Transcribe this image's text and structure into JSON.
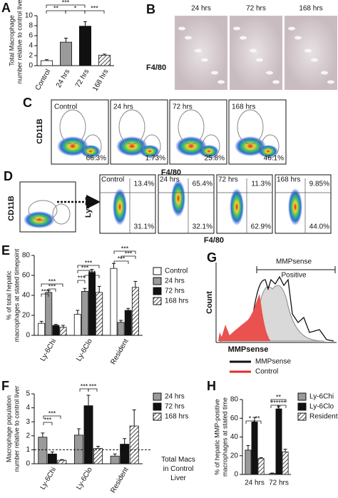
{
  "chart_data": [
    {
      "type": "bar",
      "panel": "A",
      "ylabel": [
        "Total Macrophage",
        "number relative to control liver"
      ],
      "categories": [
        "Control",
        "24 hrs",
        "72 hrs",
        "168 hrs"
      ],
      "values": [
        1,
        4.7,
        7.9,
        2.1
      ],
      "errors": [
        0.2,
        0.8,
        0.9,
        0.2
      ],
      "colors": [
        "#ffffff",
        "#9a9a9a",
        "#111111",
        "#ffffff"
      ],
      "hatched": [
        false,
        false,
        false,
        true
      ],
      "ylim": [
        0,
        10
      ],
      "yticks": [
        0,
        2,
        4,
        6,
        8,
        10
      ],
      "annotations": [
        "***",
        "**",
        "*",
        "***"
      ]
    },
    {
      "type": "grouped_bar",
      "panel": "E",
      "ylabel": [
        "% of total hepatic",
        "macrophages at stated timepoint"
      ],
      "categories": [
        "Ly-6Chi",
        "Ly-6Clo",
        "Resident"
      ],
      "series": [
        {
          "name": "Control",
          "color": "#ffffff",
          "hatched": false,
          "values": [
            12,
            21,
            67
          ],
          "errors": [
            2,
            4,
            5
          ]
        },
        {
          "name": "24 hrs",
          "color": "#9a9a9a",
          "hatched": false,
          "values": [
            43,
            44,
            13
          ],
          "errors": [
            2,
            3,
            2
          ]
        },
        {
          "name": "72 hrs",
          "color": "#111111",
          "hatched": false,
          "values": [
            10,
            63,
            25
          ],
          "errors": [
            1,
            3,
            2
          ]
        },
        {
          "name": "168 hrs",
          "color": "#ffffff",
          "hatched": true,
          "values": [
            8,
            43,
            48
          ],
          "errors": [
            2,
            6,
            6
          ]
        }
      ],
      "ylim": [
        0,
        80
      ],
      "yticks": [
        0,
        20,
        40,
        60,
        80
      ],
      "annotations": [
        "***",
        "***",
        "***",
        "***",
        "***",
        "***",
        "***",
        "***",
        "***",
        "***"
      ]
    },
    {
      "type": "grouped_bar",
      "panel": "F",
      "ylabel": [
        "Macrophage population",
        "number relative to control liver"
      ],
      "categories": [
        "Ly-6Chi",
        "Ly-6Clo",
        "Resident"
      ],
      "series": [
        {
          "name": "24 hrs",
          "color": "#9a9a9a",
          "hatched": false,
          "values": [
            1.9,
            2.05,
            0.55
          ],
          "errors": [
            0.3,
            0.45,
            0.15
          ]
        },
        {
          "name": "72 hrs",
          "color": "#111111",
          "hatched": false,
          "values": [
            0.7,
            4.15,
            1.4
          ],
          "errors": [
            0.15,
            0.75,
            0.4
          ]
        },
        {
          "name": "168 hrs",
          "color": "#ffffff",
          "hatched": true,
          "values": [
            0.25,
            1.1,
            2.7
          ],
          "errors": [
            0.05,
            0.15,
            1.15
          ]
        }
      ],
      "ylim": [
        0,
        5
      ],
      "yticks": [
        0,
        1,
        2,
        3,
        4,
        5
      ],
      "reference_value": 1,
      "reference_label": [
        "Total Macs",
        "in Control",
        "Liver"
      ],
      "annotations": [
        "***",
        "***",
        "***",
        "***"
      ]
    },
    {
      "type": "grouped_bar",
      "panel": "H",
      "ylabel": [
        "% of hepatic MMP-positive",
        "macrophages at stated time"
      ],
      "categories": [
        "24 hrs",
        "72 hrs"
      ],
      "series": [
        {
          "name": "Ly-6Chi",
          "color": "#9a9a9a",
          "hatched": false,
          "values": [
            26,
            1
          ],
          "errors": [
            5,
            0.5
          ]
        },
        {
          "name": "Ly-6Clo",
          "color": "#111111",
          "hatched": false,
          "values": [
            56,
            70
          ],
          "errors": [
            5,
            3
          ]
        },
        {
          "name": "Resident",
          "color": "#ffffff",
          "hatched": true,
          "values": [
            17,
            24
          ],
          "errors": [
            1,
            3
          ]
        }
      ],
      "ylim": [
        0,
        80
      ],
      "yticks": [
        0,
        20,
        40,
        60,
        80
      ],
      "annotations": [
        "*",
        "**",
        "**",
        "***",
        "***"
      ]
    }
  ],
  "panels": {
    "B": {
      "letter": "B",
      "times": [
        "24 hrs",
        "72 hrs",
        "168 hrs"
      ],
      "stain": "F4/80"
    },
    "C": {
      "letter": "C",
      "y_axis": "CD11B",
      "x_axis": "F4/80",
      "plots": [
        {
          "label": "Control",
          "percent": "66.3%"
        },
        {
          "label": "24 hrs",
          "percent": "1.73%"
        },
        {
          "label": "72 hrs",
          "percent": "25.8%"
        },
        {
          "label": "168 hrs",
          "percent": "46.1%"
        }
      ]
    },
    "D": {
      "letter": "D",
      "gate_y_axis": "CD11B",
      "y_axis": "Ly-6C",
      "x_axis": "F4/80",
      "plots": [
        {
          "label": "Control",
          "upper": "13.4%",
          "lower": "31.1%"
        },
        {
          "label": "24 hrs",
          "upper": "65.4%",
          "lower": "32.1%"
        },
        {
          "label": "72 hrs",
          "upper": "11.3%",
          "lower": "62.9%"
        },
        {
          "label": "168 hrs",
          "upper": "9.85%",
          "lower": "44.0%"
        }
      ]
    },
    "G": {
      "letter": "G",
      "gate": [
        "MMPsense",
        "Positive"
      ],
      "y_axis": "Count",
      "x_axis": "MMPsense",
      "legend": [
        "MMPsense",
        "Control"
      ]
    }
  }
}
